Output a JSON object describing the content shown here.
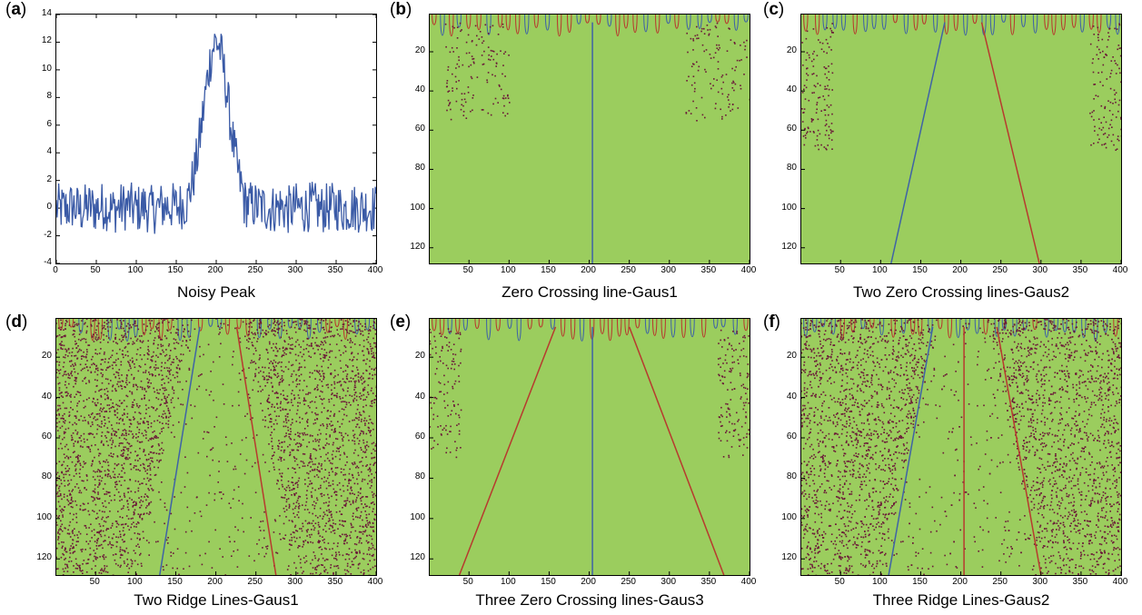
{
  "colors": {
    "field": "#9bcd5e",
    "blue_line": "#3f63a6",
    "red_line": "#b73a2e",
    "dots": "#6b1838",
    "signal": "#3a5aa6"
  },
  "panels": [
    {
      "label_open": "(",
      "label_letter": "a",
      "label_close": ")",
      "caption": "Noisy Peak"
    },
    {
      "label_open": "(",
      "label_letter": "b",
      "label_close": ")",
      "caption": "Zero Crossing line-Gaus1"
    },
    {
      "label_open": "(",
      "label_letter": "c",
      "label_close": ")",
      "caption": "Two Zero Crossing lines-Gaus2"
    },
    {
      "label_open": "(",
      "label_letter": "d",
      "label_close": ")",
      "caption": "Two Ridge Lines-Gaus1"
    },
    {
      "label_open": "(",
      "label_letter": "e",
      "label_close": ")",
      "caption": "Three Zero Crossing lines-Gaus3"
    },
    {
      "label_open": "(",
      "label_letter": "f",
      "label_close": ")",
      "caption": "Three Ridge Lines-Gaus2"
    }
  ],
  "chart_data": [
    {
      "type": "line",
      "panel": "a",
      "title": "Noisy Peak",
      "xlim": [
        0,
        400
      ],
      "ylim": [
        -4,
        14
      ],
      "xticks": [
        "0",
        "50",
        "100",
        "150",
        "200",
        "250",
        "300",
        "350",
        "400"
      ],
      "yticks": [
        "14",
        "12",
        "10",
        "8",
        "6",
        "4",
        "2",
        "0",
        "-2",
        "-4"
      ],
      "series": [
        {
          "description": "Gaussian peak near x=200 (max ~12.5) on noise baseline of ~±2",
          "x": [
            0,
            10,
            20,
            30,
            40,
            50,
            60,
            70,
            80,
            90,
            100,
            110,
            120,
            130,
            140,
            150,
            160,
            170,
            180,
            190,
            195,
            200,
            205,
            210,
            220,
            230,
            240,
            250,
            260,
            270,
            280,
            290,
            300,
            310,
            320,
            330,
            340,
            350,
            360,
            370,
            380,
            390,
            400
          ],
          "values": [
            0.2,
            -0.5,
            1.0,
            -1.2,
            0.8,
            -0.3,
            1.5,
            -0.8,
            0.4,
            1.2,
            -0.6,
            0.9,
            -1.0,
            0.6,
            1.1,
            0.5,
            2.0,
            4.5,
            8.0,
            10.5,
            11.8,
            12.4,
            11.5,
            10.0,
            6.5,
            3.5,
            1.8,
            1.0,
            0.3,
            -0.5,
            0.8,
            -1.0,
            0.6,
            -0.4,
            1.2,
            -0.8,
            0.3,
            0.9,
            -0.6,
            0.4,
            -0.2,
            0.6,
            -0.3
          ]
        }
      ]
    },
    {
      "type": "heatmap",
      "panel": "b",
      "title": "Zero Crossing line-Gaus1",
      "xticks": [
        "50",
        "100",
        "150",
        "200",
        "250",
        "300",
        "350",
        "400"
      ],
      "yticks": [
        "20",
        "40",
        "60",
        "80",
        "100",
        "120"
      ],
      "xlim": [
        1,
        400
      ],
      "ylim": [
        1,
        128
      ],
      "lines": [
        {
          "color": "blue",
          "x_top": 204,
          "x_bottom": 204
        }
      ]
    },
    {
      "type": "heatmap",
      "panel": "c",
      "title": "Two Zero Crossing lines-Gaus2",
      "xticks": [
        "50",
        "100",
        "150",
        "200",
        "250",
        "300",
        "350",
        "400"
      ],
      "yticks": [
        "20",
        "40",
        "60",
        "80",
        "100",
        "120"
      ],
      "xlim": [
        1,
        400
      ],
      "ylim": [
        1,
        128
      ],
      "lines": [
        {
          "color": "blue",
          "x_top": 180,
          "x_bottom": 113
        },
        {
          "color": "red",
          "x_top": 226,
          "x_bottom": 298
        }
      ]
    },
    {
      "type": "heatmap",
      "panel": "d",
      "title": "Two Ridge Lines-Gaus1",
      "xticks": [
        "50",
        "100",
        "150",
        "200",
        "250",
        "300",
        "350",
        "400"
      ],
      "yticks": [
        "20",
        "40",
        "60",
        "80",
        "100",
        "120"
      ],
      "xlim": [
        1,
        400
      ],
      "ylim": [
        1,
        128
      ],
      "lines": [
        {
          "color": "blue",
          "x_top": 180,
          "x_bottom": 130
        },
        {
          "color": "red",
          "x_top": 226,
          "x_bottom": 275
        }
      ]
    },
    {
      "type": "heatmap",
      "panel": "e",
      "title": "Three Zero Crossing lines-Gaus3",
      "xticks": [
        "50",
        "100",
        "150",
        "200",
        "250",
        "300",
        "350",
        "400"
      ],
      "yticks": [
        "20",
        "40",
        "60",
        "80",
        "100",
        "120"
      ],
      "xlim": [
        1,
        400
      ],
      "ylim": [
        1,
        128
      ],
      "lines": [
        {
          "color": "red",
          "x_top": 158,
          "x_bottom": 38
        },
        {
          "color": "blue",
          "x_top": 204,
          "x_bottom": 204
        },
        {
          "color": "red",
          "x_top": 250,
          "x_bottom": 368
        }
      ]
    },
    {
      "type": "heatmap",
      "panel": "f",
      "title": "Three Ridge Lines-Gaus2",
      "xticks": [
        "50",
        "100",
        "150",
        "200",
        "250",
        "300",
        "350",
        "400"
      ],
      "yticks": [
        "20",
        "40",
        "60",
        "80",
        "100",
        "120"
      ],
      "xlim": [
        1,
        400
      ],
      "ylim": [
        1,
        128
      ],
      "lines": [
        {
          "color": "blue",
          "x_top": 165,
          "x_bottom": 110
        },
        {
          "color": "red",
          "x_top": 204,
          "x_bottom": 204
        },
        {
          "color": "red",
          "x_top": 245,
          "x_bottom": 300
        }
      ]
    }
  ]
}
